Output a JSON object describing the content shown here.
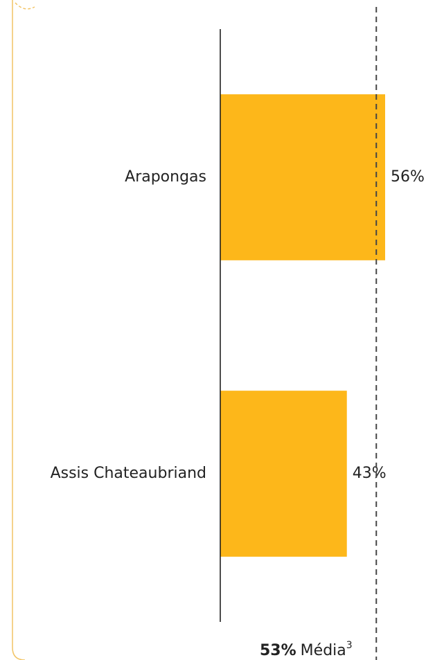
{
  "chart_data": {
    "type": "barh",
    "categories": [
      "Arapongas",
      "Assis Chateaubriand"
    ],
    "values": [
      56,
      43
    ],
    "value_labels": [
      "56%",
      "43%"
    ],
    "color": "#fdb71a",
    "xlim": [
      0,
      100
    ],
    "average": 53,
    "average_label": "53%",
    "average_text": "Média",
    "average_note": "3"
  }
}
